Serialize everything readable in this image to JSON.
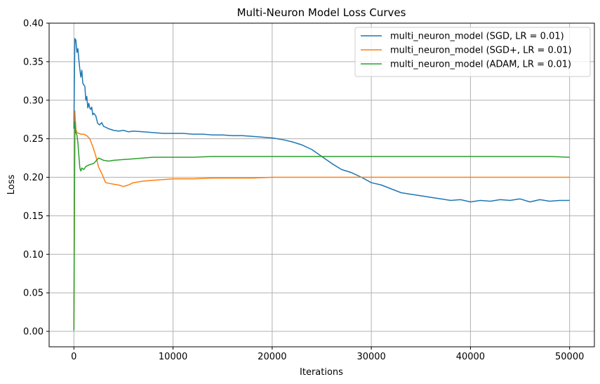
{
  "chart_data": {
    "type": "line",
    "title": "Multi-Neuron Model Loss Curves",
    "xlabel": "Iterations",
    "ylabel": "Loss",
    "xlim": [
      -2500,
      52500
    ],
    "ylim": [
      -0.02,
      0.4
    ],
    "grid": true,
    "legend_position": "top-right",
    "xticks": [
      0,
      10000,
      20000,
      30000,
      40000,
      50000
    ],
    "xtick_labels": [
      "0",
      "10000",
      "20000",
      "30000",
      "40000",
      "50000"
    ],
    "yticks": [
      0.0,
      0.05,
      0.1,
      0.15,
      0.2,
      0.25,
      0.3,
      0.35,
      0.4
    ],
    "ytick_labels": [
      "0.00",
      "0.05",
      "0.10",
      "0.15",
      "0.20",
      "0.25",
      "0.30",
      "0.35",
      "0.40"
    ],
    "series": [
      {
        "name": "multi_neuron_model (SGD, LR = 0.01)",
        "color": "#1f77b4",
        "x": [
          0,
          100,
          200,
          300,
          400,
          500,
          600,
          700,
          800,
          900,
          1000,
          1100,
          1200,
          1300,
          1400,
          1500,
          1600,
          1700,
          1800,
          1900,
          2000,
          2200,
          2400,
          2600,
          2800,
          3000,
          3200,
          3500,
          4000,
          4500,
          5000,
          5500,
          6000,
          7000,
          8000,
          9000,
          10000,
          11000,
          12000,
          13000,
          14000,
          15000,
          16000,
          17000,
          18000,
          19000,
          20000,
          21000,
          22000,
          23000,
          24000,
          25000,
          26000,
          27000,
          28000,
          29000,
          30000,
          31000,
          32000,
          33000,
          34000,
          35000,
          36000,
          37000,
          38000,
          39000,
          40000,
          41000,
          42000,
          43000,
          44000,
          45000,
          46000,
          47000,
          48000,
          49000,
          50000
        ],
        "y": [
          0.263,
          0.38,
          0.378,
          0.362,
          0.367,
          0.352,
          0.34,
          0.33,
          0.339,
          0.322,
          0.32,
          0.318,
          0.3,
          0.305,
          0.29,
          0.296,
          0.29,
          0.288,
          0.291,
          0.281,
          0.283,
          0.28,
          0.27,
          0.268,
          0.271,
          0.266,
          0.265,
          0.263,
          0.261,
          0.26,
          0.261,
          0.259,
          0.26,
          0.259,
          0.258,
          0.257,
          0.257,
          0.257,
          0.256,
          0.256,
          0.255,
          0.255,
          0.254,
          0.254,
          0.253,
          0.252,
          0.251,
          0.249,
          0.246,
          0.242,
          0.236,
          0.227,
          0.218,
          0.21,
          0.206,
          0.2,
          0.193,
          0.19,
          0.185,
          0.18,
          0.178,
          0.176,
          0.174,
          0.172,
          0.17,
          0.171,
          0.168,
          0.17,
          0.169,
          0.171,
          0.17,
          0.172,
          0.168,
          0.171,
          0.169,
          0.17,
          0.17
        ]
      },
      {
        "name": "multi_neuron_model (SGD+, LR = 0.01)",
        "color": "#ff7f0e",
        "x": [
          0,
          100,
          200,
          300,
          500,
          700,
          1000,
          1300,
          1600,
          1900,
          2200,
          2500,
          2800,
          3200,
          3600,
          4000,
          4500,
          5000,
          5500,
          6000,
          7000,
          8000,
          9000,
          10000,
          12000,
          14000,
          16000,
          18000,
          20000,
          22000,
          24000,
          26000,
          28000,
          30000,
          32000,
          34000,
          36000,
          38000,
          40000,
          42000,
          44000,
          46000,
          48000,
          50000
        ],
        "y": [
          0.002,
          0.286,
          0.262,
          0.258,
          0.257,
          0.256,
          0.256,
          0.254,
          0.25,
          0.24,
          0.228,
          0.213,
          0.205,
          0.193,
          0.192,
          0.191,
          0.19,
          0.188,
          0.19,
          0.193,
          0.195,
          0.196,
          0.197,
          0.198,
          0.198,
          0.199,
          0.199,
          0.199,
          0.2,
          0.2,
          0.2,
          0.2,
          0.2,
          0.2,
          0.2,
          0.2,
          0.2,
          0.2,
          0.2,
          0.2,
          0.2,
          0.2,
          0.2,
          0.2
        ]
      },
      {
        "name": "multi_neuron_model (ADAM, LR = 0.01)",
        "color": "#2ca02c",
        "x": [
          0,
          100,
          200,
          300,
          400,
          500,
          600,
          700,
          800,
          1000,
          1200,
          1500,
          2000,
          2500,
          3000,
          3500,
          4000,
          5000,
          6000,
          7000,
          8000,
          10000,
          12000,
          14000,
          16000,
          18000,
          20000,
          22000,
          24000,
          26000,
          28000,
          30000,
          32000,
          34000,
          36000,
          38000,
          40000,
          42000,
          44000,
          46000,
          48000,
          50000
        ],
        "y": [
          0.001,
          0.272,
          0.258,
          0.255,
          0.245,
          0.228,
          0.212,
          0.208,
          0.212,
          0.21,
          0.214,
          0.216,
          0.218,
          0.225,
          0.222,
          0.221,
          0.222,
          0.223,
          0.224,
          0.225,
          0.226,
          0.226,
          0.226,
          0.227,
          0.227,
          0.227,
          0.227,
          0.227,
          0.227,
          0.227,
          0.227,
          0.227,
          0.227,
          0.227,
          0.227,
          0.227,
          0.227,
          0.227,
          0.227,
          0.227,
          0.227,
          0.226
        ]
      }
    ]
  }
}
